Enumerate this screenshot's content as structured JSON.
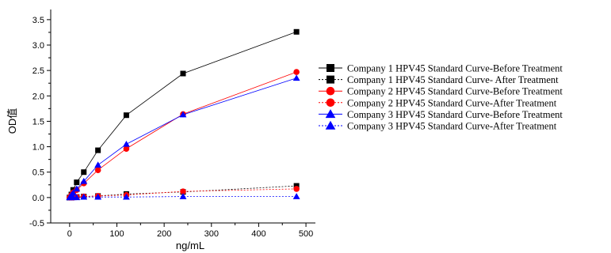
{
  "chart_data": {
    "type": "scatter",
    "xlabel": "ng/mL",
    "ylabel": "OD值",
    "xlim": [
      -40,
      520
    ],
    "ylim": [
      -0.5,
      3.7
    ],
    "xticks": [
      0,
      100,
      200,
      300,
      400,
      500
    ],
    "yticks": [
      -0.5,
      0.0,
      0.5,
      1.0,
      1.5,
      2.0,
      2.5,
      3.0,
      3.5
    ],
    "xtick_labels": [
      "0",
      "100",
      "200",
      "300",
      "400",
      "500"
    ],
    "ytick_labels": [
      "-0.5",
      "0.0",
      "0.5",
      "1.0",
      "1.5",
      "2.0",
      "2.5",
      "3.0",
      "3.5"
    ],
    "grid": false,
    "legend_position": "right",
    "x": [
      0,
      3.75,
      7.5,
      15,
      30,
      60,
      120,
      240,
      480
    ],
    "series": [
      {
        "name": "Company 1 HPV45 Standard Curve-Before Treatment",
        "marker": "square",
        "color": "#000000",
        "line": "solid",
        "values": [
          0.0,
          0.06,
          0.15,
          0.3,
          0.5,
          0.93,
          1.62,
          2.44,
          3.26
        ]
      },
      {
        "name": "Company 1 HPV45 Standard Curve- After Treatment",
        "marker": "square",
        "color": "#000000",
        "line": "dotted",
        "values": [
          0.0,
          0.0,
          0.01,
          0.01,
          0.02,
          0.03,
          0.07,
          0.11,
          0.23
        ]
      },
      {
        "name": "Company 2 HPV45 Standard Curve-Before Treatment",
        "marker": "circle",
        "color": "#ff0000",
        "line": "solid",
        "values": [
          0.0,
          0.05,
          0.1,
          0.15,
          0.28,
          0.54,
          0.96,
          1.64,
          2.47
        ]
      },
      {
        "name": "Company 2 HPV45 Standard Curve-After Treatment",
        "marker": "circle",
        "color": "#ff0000",
        "line": "dotted",
        "values": [
          0.0,
          0.0,
          0.0,
          0.01,
          0.02,
          0.03,
          0.05,
          0.12,
          0.17
        ]
      },
      {
        "name": "Company 3 HPV45 Standard Curve-Before Treatment",
        "marker": "triangle",
        "color": "#0000ff",
        "line": "solid",
        "values": [
          0.0,
          0.05,
          0.09,
          0.17,
          0.32,
          0.64,
          1.05,
          1.63,
          2.35
        ]
      },
      {
        "name": "Company 3 HPV45 Standard Curve-After Treatment",
        "marker": "triangle",
        "color": "#0000ff",
        "line": "dotted",
        "values": [
          0.0,
          0.0,
          0.0,
          0.0,
          0.01,
          0.01,
          0.01,
          0.02,
          0.02
        ]
      }
    ]
  }
}
